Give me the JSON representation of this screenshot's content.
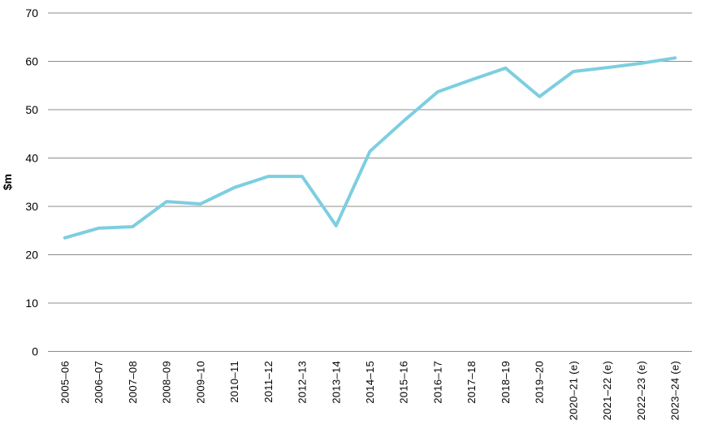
{
  "page": {
    "background": "#ffffff"
  },
  "chart_data": {
    "type": "line",
    "title": "",
    "xlabel": "",
    "ylabel": "$m",
    "categories": [
      "2005–06",
      "2006–07",
      "2007–08",
      "2008–09",
      "2009–10",
      "2010–11",
      "2011–12",
      "2012–13",
      "2013–14",
      "2014–15",
      "2015–16",
      "2016–17",
      "2017–18",
      "2018–19",
      "2019–20",
      "2020–21 (e)",
      "2021–22 (e)",
      "2022–23 (e)",
      "2023–24 (e)"
    ],
    "series": [
      {
        "name": "$m",
        "values": [
          23.5,
          25.5,
          25.8,
          31.0,
          30.5,
          33.9,
          36.2,
          36.2,
          26.0,
          41.4,
          47.7,
          53.7,
          56.2,
          58.6,
          52.7,
          57.9,
          58.7,
          59.6,
          60.7
        ]
      }
    ],
    "ylim": [
      0,
      70
    ],
    "yticks": [
      0,
      10,
      20,
      30,
      40,
      50,
      60,
      70
    ],
    "grid": true,
    "legend_position": "none",
    "line_color": "#7DCEE0",
    "gridline_color": "#8C8C8C",
    "text_color": "#000000"
  }
}
